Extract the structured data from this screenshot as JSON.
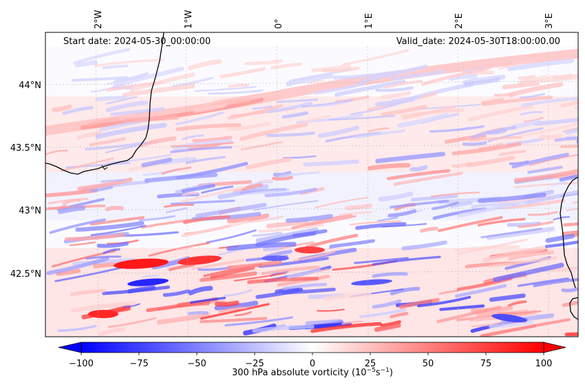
{
  "header": {
    "start_date": "Start date: 2024-05-30_00:00:00",
    "valid_date": "Valid_date: 2024-05-30T18:00:00.00"
  },
  "map": {
    "longitude_labels": [
      "2°W",
      "1°W",
      "0°",
      "1°E",
      "2°E",
      "3°E"
    ],
    "latitude_labels": [
      "44°N",
      "43.5°N",
      "43°N",
      "42.5°N"
    ],
    "field": "300 hPa absolute vorticity",
    "units": "10^-5 s^-1"
  },
  "colorbar": {
    "tick_labels": [
      "−100",
      "−75",
      "−50",
      "−25",
      "0",
      "25",
      "50",
      "75",
      "100"
    ],
    "label": "300 hPa absolute vorticity (10",
    "label_exponent": "−5",
    "label_s": "s",
    "label_s_exponent": "−1",
    "label_close": ")",
    "min_color": "#0000ff",
    "mid_color": "#ffffff",
    "max_color": "#ff0000"
  },
  "chart_data": {
    "type": "heatmap",
    "title": "300 hPa absolute vorticity",
    "start_date": "2024-05-30_00:00:00",
    "valid_date": "2024-05-30T18:00:00.00",
    "colorbar_range": [
      -100,
      100
    ],
    "colorbar_ticks": [
      -100,
      -75,
      -50,
      -25,
      0,
      25,
      50,
      75,
      100
    ],
    "longitude_ticks": [
      -2,
      -1,
      0,
      1,
      2,
      3
    ],
    "latitude_ticks": [
      44,
      43.5,
      43,
      42.5
    ],
    "lon_range": [
      -2.55,
      3.3
    ],
    "lat_range": [
      42.0,
      44.45
    ]
  }
}
